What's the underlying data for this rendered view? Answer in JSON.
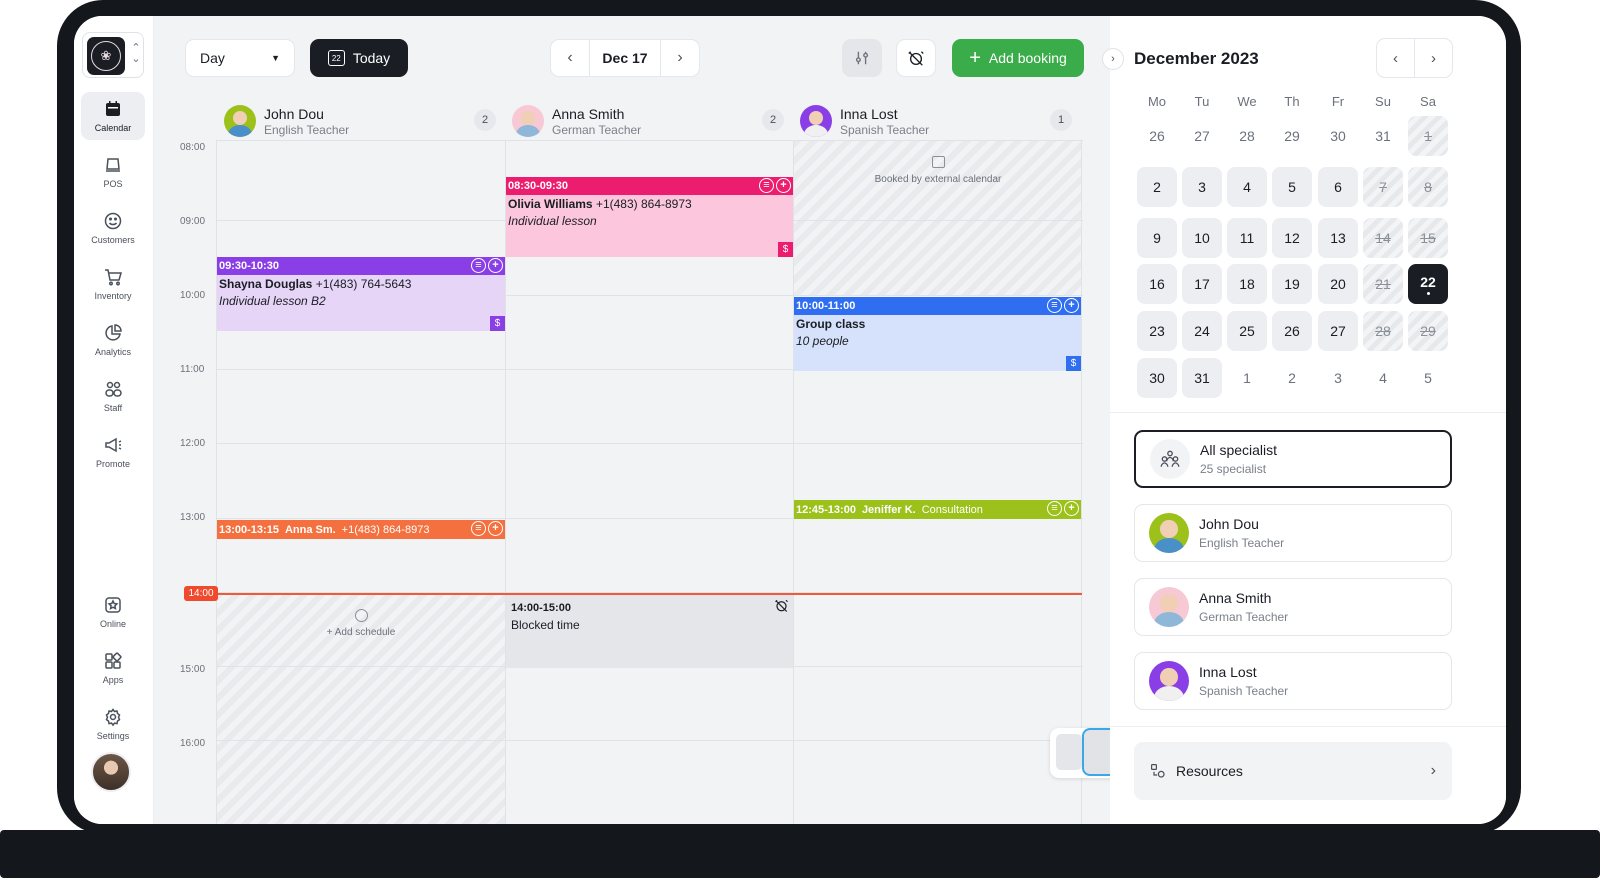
{
  "sidebar": {
    "items": [
      {
        "label": "Calendar",
        "icon": "calendar-icon"
      },
      {
        "label": "POS",
        "icon": "pos-icon"
      },
      {
        "label": "Customers",
        "icon": "smile-icon"
      },
      {
        "label": "Inventory",
        "icon": "cart-icon"
      },
      {
        "label": "Analytics",
        "icon": "pie-chart-icon"
      },
      {
        "label": "Staff",
        "icon": "staff-icon"
      },
      {
        "label": "Promote",
        "icon": "megaphone-icon"
      },
      {
        "label": "Online",
        "icon": "star-icon"
      },
      {
        "label": "Apps",
        "icon": "apps-icon"
      },
      {
        "label": "Settings",
        "icon": "gear-icon"
      }
    ]
  },
  "toolbar": {
    "view": "Day",
    "today_label": "Today",
    "today_icon_day": "22",
    "date": "Dec 17",
    "add_label": "Add booking"
  },
  "staff": [
    {
      "name": "John Dou",
      "role": "English Teacher",
      "count": "2"
    },
    {
      "name": "Anna Smith",
      "role": "German Teacher",
      "count": "2"
    },
    {
      "name": "Inna Lost",
      "role": "Spanish Teacher",
      "count": "1"
    }
  ],
  "hours": [
    "08:00",
    "09:00",
    "10:00",
    "11:00",
    "12:00",
    "13:00",
    "14:00",
    "15:00",
    "16:00"
  ],
  "now_time": "14:00",
  "events": {
    "olivia": {
      "time": "08:30-09:30",
      "name": "Olivia Williams",
      "phone": "+1(483) 864-8973",
      "note": "Individual lesson",
      "color": "#ec1c6e",
      "bg": "#fcc7dc"
    },
    "shayna": {
      "time": "09:30-10:30",
      "name": "Shayna Douglas",
      "phone": "+1(483) 764-5643",
      "note": "Individual lesson B2",
      "color": "#8a3fe6",
      "bg": "#e6d5f7"
    },
    "group": {
      "time": "10:00-11:00",
      "name": "Group class",
      "note": "10 people",
      "color": "#2f6ef0",
      "bg": "#d6e2fb"
    },
    "jeniffer": {
      "time": "12:45-13:00",
      "name": "Jeniffer K.",
      "note": "Consultation",
      "color": "#9bc11a"
    },
    "anna": {
      "time": "13:00-13:15",
      "name": "Anna Sm.",
      "phone": "+1(483) 864-8973",
      "color": "#f4703e"
    },
    "blocked": {
      "time": "14:00-15:00",
      "label": "Blocked time"
    }
  },
  "external_label": "Booked by external calendar",
  "add_schedule_label": "+ Add schedule",
  "calendar": {
    "title": "December 2023",
    "dow": [
      "Mo",
      "Tu",
      "We",
      "Th",
      "Fr",
      "Su",
      "Sa"
    ],
    "weeks": [
      [
        "26",
        "27",
        "28",
        "29",
        "30",
        "31",
        "1"
      ],
      [
        "2",
        "3",
        "4",
        "5",
        "6",
        "7",
        "8"
      ],
      [
        "9",
        "10",
        "11",
        "12",
        "13",
        "14",
        "15"
      ],
      [
        "16",
        "17",
        "18",
        "19",
        "20",
        "21",
        "22"
      ],
      [
        "23",
        "24",
        "25",
        "26",
        "27",
        "28",
        "29"
      ],
      [
        "30",
        "31",
        "1",
        "2",
        "3",
        "4",
        "5"
      ]
    ]
  },
  "specialists": [
    {
      "name": "All specialist",
      "sub": "25 specialist"
    },
    {
      "name": "John Dou",
      "sub": "English Teacher"
    },
    {
      "name": "Anna Smith",
      "sub": "German Teacher"
    },
    {
      "name": "Inna Lost",
      "sub": "Spanish Teacher"
    }
  ],
  "resources_label": "Resources"
}
